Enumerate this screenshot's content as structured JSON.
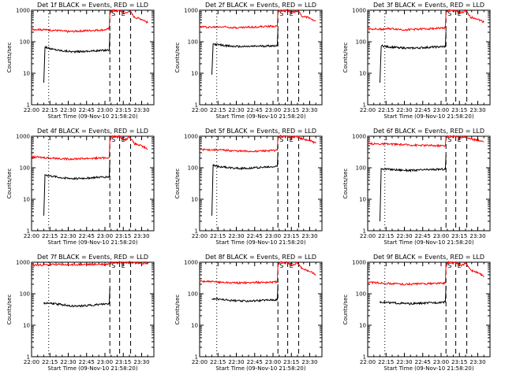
{
  "figure": {
    "xlabel": "Start Time (09-Nov-10 21:58:20)",
    "ylabel": "Counts/sec",
    "x_ticks": [
      "22:00",
      "22:15",
      "22:30",
      "22:45",
      "23:00",
      "23:15",
      "23:30"
    ],
    "y_ticks": [
      "1",
      "10",
      "100",
      "1000"
    ],
    "marker_labels": [
      "S",
      "E"
    ],
    "colors": {
      "events": "#000000",
      "lld": "#ff0000",
      "background": "#ffffff"
    }
  },
  "chart_data": [
    {
      "type": "line",
      "title": "Det 1f BLACK = Events, RED = LLD",
      "xlabel": "Start Time (09-Nov-10 21:58:20)",
      "ylabel": "Counts/sec",
      "x_unit": "minutes after 22:00",
      "xlim": [
        0,
        100
      ],
      "ylim": [
        1,
        1000
      ],
      "y_scale": "log",
      "vlines": [
        {
          "x": 14,
          "style": "dotted"
        },
        {
          "x": 64,
          "style": "dashed",
          "label": "S"
        },
        {
          "x": 72,
          "style": "dashed",
          "label": "E"
        },
        {
          "x": 81,
          "style": "dashed"
        }
      ],
      "series": [
        {
          "name": "Events",
          "color": "#000000",
          "x": [
            10,
            11,
            15,
            25,
            35,
            45,
            55,
            63.5,
            64
          ],
          "y": [
            5,
            70,
            60,
            52,
            48,
            50,
            52,
            55,
            190
          ]
        },
        {
          "name": "LLD",
          "color": "#ff0000",
          "x": [
            0,
            10,
            20,
            30,
            40,
            50,
            60,
            63.5,
            64,
            66,
            70,
            72,
            75,
            78,
            80,
            84,
            88,
            92,
            95
          ],
          "y": [
            250,
            240,
            230,
            210,
            220,
            230,
            240,
            260,
            800,
            1000,
            950,
            1000,
            800,
            820,
            1000,
            600,
            550,
            480,
            400
          ]
        }
      ]
    },
    {
      "type": "line",
      "title": "Det 2f BLACK = Events, RED = LLD",
      "xlabel": "Start Time (09-Nov-10 21:58:20)",
      "ylabel": "Counts/sec",
      "x_unit": "minutes after 22:00",
      "xlim": [
        0,
        100
      ],
      "ylim": [
        1,
        1000
      ],
      "y_scale": "log",
      "vlines": [
        {
          "x": 14,
          "style": "dotted"
        },
        {
          "x": 64,
          "style": "dashed",
          "label": "S"
        },
        {
          "x": 72,
          "style": "dashed",
          "label": "E"
        },
        {
          "x": 81,
          "style": "dashed"
        }
      ],
      "series": [
        {
          "name": "Events",
          "color": "#000000",
          "x": [
            10,
            11,
            15,
            25,
            35,
            45,
            55,
            63.5,
            64
          ],
          "y": [
            9,
            85,
            80,
            72,
            70,
            72,
            74,
            75,
            250
          ]
        },
        {
          "name": "LLD",
          "color": "#ff0000",
          "x": [
            0,
            10,
            20,
            30,
            40,
            50,
            60,
            63.5,
            64,
            66,
            70,
            72,
            75,
            78,
            80,
            84,
            88,
            92,
            95
          ],
          "y": [
            300,
            290,
            300,
            280,
            290,
            300,
            310,
            320,
            900,
            1000,
            950,
            1000,
            850,
            900,
            1000,
            650,
            600,
            520,
            450
          ]
        }
      ]
    },
    {
      "type": "line",
      "title": "Det 3f BLACK = Events, RED = LLD",
      "xlabel": "Start Time (09-Nov-10 21:58:20)",
      "ylabel": "Counts/sec",
      "x_unit": "minutes after 22:00",
      "xlim": [
        0,
        100
      ],
      "ylim": [
        1,
        1000
      ],
      "y_scale": "log",
      "vlines": [
        {
          "x": 14,
          "style": "dotted"
        },
        {
          "x": 64,
          "style": "dashed",
          "label": "S"
        },
        {
          "x": 72,
          "style": "dashed",
          "label": "E"
        },
        {
          "x": 81,
          "style": "dashed"
        }
      ],
      "series": [
        {
          "name": "Events",
          "color": "#000000",
          "x": [
            10,
            11,
            15,
            25,
            35,
            45,
            55,
            63.5,
            64
          ],
          "y": [
            5,
            75,
            70,
            65,
            62,
            65,
            68,
            70,
            220
          ]
        },
        {
          "name": "LLD",
          "color": "#ff0000",
          "x": [
            0,
            10,
            20,
            30,
            40,
            50,
            60,
            63.5,
            64,
            66,
            70,
            72,
            75,
            78,
            80,
            84,
            88,
            92,
            95
          ],
          "y": [
            260,
            250,
            260,
            240,
            250,
            260,
            270,
            280,
            850,
            1000,
            950,
            1000,
            820,
            860,
            1000,
            600,
            560,
            480,
            420
          ]
        }
      ]
    },
    {
      "type": "line",
      "title": "Det 4f BLACK = Events, RED = LLD",
      "xlabel": "Start Time (09-Nov-10 21:58:20)",
      "ylabel": "Counts/sec",
      "x_unit": "minutes after 22:00",
      "xlim": [
        0,
        100
      ],
      "ylim": [
        1,
        1000
      ],
      "y_scale": "log",
      "vlines": [
        {
          "x": 14,
          "style": "dotted"
        },
        {
          "x": 64,
          "style": "dashed",
          "label": "S"
        },
        {
          "x": 72,
          "style": "dashed",
          "label": "E"
        },
        {
          "x": 81,
          "style": "dashed"
        }
      ],
      "series": [
        {
          "name": "Events",
          "color": "#000000",
          "x": [
            10,
            11,
            15,
            25,
            35,
            45,
            55,
            63.5,
            64
          ],
          "y": [
            3,
            60,
            55,
            48,
            45,
            47,
            50,
            52,
            180
          ]
        },
        {
          "name": "LLD",
          "color": "#ff0000",
          "x": [
            0,
            10,
            20,
            30,
            40,
            50,
            60,
            63.5,
            64,
            66,
            70,
            72,
            75,
            78,
            80,
            84,
            88,
            92,
            95
          ],
          "y": [
            220,
            210,
            200,
            190,
            195,
            200,
            205,
            210,
            750,
            1000,
            950,
            1000,
            780,
            820,
            1000,
            580,
            520,
            450,
            380
          ]
        }
      ]
    },
    {
      "type": "line",
      "title": "Det 5f BLACK = Events, RED = LLD",
      "xlabel": "Start Time (09-Nov-10 21:58:20)",
      "ylabel": "Counts/sec",
      "x_unit": "minutes after 22:00",
      "xlim": [
        0,
        100
      ],
      "ylim": [
        1,
        1000
      ],
      "y_scale": "log",
      "vlines": [
        {
          "x": 14,
          "style": "dotted"
        },
        {
          "x": 64,
          "style": "dashed",
          "label": "S"
        },
        {
          "x": 72,
          "style": "dashed",
          "label": "E"
        },
        {
          "x": 81,
          "style": "dashed"
        }
      ],
      "series": [
        {
          "name": "Events",
          "color": "#000000",
          "x": [
            10,
            11,
            15,
            25,
            35,
            45,
            55,
            63.5,
            64
          ],
          "y": [
            3,
            120,
            110,
            100,
            95,
            100,
            105,
            110,
            300
          ]
        },
        {
          "name": "LLD",
          "color": "#ff0000",
          "x": [
            0,
            10,
            20,
            30,
            40,
            50,
            60,
            63.5,
            64,
            66,
            70,
            72,
            75,
            78,
            80,
            84,
            88,
            92,
            95
          ],
          "y": [
            380,
            370,
            360,
            340,
            330,
            340,
            350,
            360,
            950,
            1000,
            980,
            1000,
            900,
            950,
            1000,
            800,
            750,
            680,
            600
          ]
        }
      ]
    },
    {
      "type": "line",
      "title": "Det 6f BLACK = Events, RED = LLD",
      "xlabel": "Start Time (09-Nov-10 21:58:20)",
      "ylabel": "Counts/sec",
      "x_unit": "minutes after 22:00",
      "xlim": [
        0,
        100
      ],
      "ylim": [
        1,
        1000
      ],
      "y_scale": "log",
      "vlines": [
        {
          "x": 14,
          "style": "dotted"
        },
        {
          "x": 64,
          "style": "dashed",
          "label": "S"
        },
        {
          "x": 72,
          "style": "dashed",
          "label": "E"
        },
        {
          "x": 81,
          "style": "dashed"
        }
      ],
      "series": [
        {
          "name": "Events",
          "color": "#000000",
          "x": [
            10,
            11,
            15,
            25,
            35,
            45,
            55,
            63.5,
            64
          ],
          "y": [
            2,
            95,
            90,
            85,
            82,
            85,
            88,
            90,
            250
          ]
        },
        {
          "name": "LLD",
          "color": "#ff0000",
          "x": [
            0,
            10,
            20,
            30,
            40,
            50,
            60,
            63.5,
            64,
            66,
            70,
            72,
            75,
            78,
            80,
            84,
            88,
            92,
            95
          ],
          "y": [
            580,
            570,
            560,
            540,
            520,
            510,
            500,
            500,
            950,
            1000,
            980,
            1000,
            900,
            950,
            1000,
            800,
            780,
            720,
            680
          ]
        }
      ]
    },
    {
      "type": "line",
      "title": "Det 7f BLACK = Events, RED = LLD",
      "xlabel": "Start Time (09-Nov-10 21:58:20)",
      "ylabel": "Counts/sec",
      "x_unit": "minutes after 22:00",
      "xlim": [
        0,
        100
      ],
      "ylim": [
        1,
        1000
      ],
      "y_scale": "log",
      "vlines": [
        {
          "x": 14,
          "style": "dotted"
        },
        {
          "x": 64,
          "style": "dashed",
          "label": "S"
        },
        {
          "x": 72,
          "style": "dashed",
          "label": "E"
        },
        {
          "x": 81,
          "style": "dashed"
        }
      ],
      "series": [
        {
          "name": "Events",
          "color": "#000000",
          "x": [
            10,
            15,
            25,
            35,
            45,
            55,
            63.5,
            64
          ],
          "y": [
            50,
            50,
            45,
            40,
            42,
            45,
            48,
            150
          ]
        },
        {
          "name": "LLD",
          "color": "#ff0000",
          "x": [
            0,
            10,
            20,
            30,
            40,
            50,
            60,
            63.5,
            64,
            66,
            70,
            72,
            75,
            78,
            80,
            84,
            88,
            92,
            95
          ],
          "y": [
            800,
            820,
            850,
            830,
            840,
            850,
            860,
            880,
            1000,
            1000,
            980,
            1000,
            950,
            980,
            1000,
            950,
            930,
            920,
            900
          ]
        }
      ]
    },
    {
      "type": "line",
      "title": "Det 8f BLACK = Events, RED = LLD",
      "xlabel": "Start Time (09-Nov-10 21:58:20)",
      "ylabel": "Counts/sec",
      "x_unit": "minutes after 22:00",
      "xlim": [
        0,
        100
      ],
      "ylim": [
        1,
        1000
      ],
      "y_scale": "log",
      "vlines": [
        {
          "x": 14,
          "style": "dotted"
        },
        {
          "x": 64,
          "style": "dashed",
          "label": "S"
        },
        {
          "x": 72,
          "style": "dashed",
          "label": "E"
        },
        {
          "x": 81,
          "style": "dashed"
        }
      ],
      "series": [
        {
          "name": "Events",
          "color": "#000000",
          "x": [
            10,
            15,
            25,
            35,
            45,
            55,
            63.5,
            64
          ],
          "y": [
            70,
            68,
            62,
            58,
            60,
            63,
            65,
            200
          ]
        },
        {
          "name": "LLD",
          "color": "#ff0000",
          "x": [
            0,
            10,
            20,
            30,
            40,
            50,
            60,
            63.5,
            64,
            66,
            70,
            72,
            75,
            78,
            80,
            84,
            88,
            92,
            95
          ],
          "y": [
            250,
            240,
            230,
            220,
            225,
            230,
            235,
            240,
            800,
            1000,
            950,
            1000,
            800,
            850,
            1000,
            600,
            550,
            480,
            400
          ]
        }
      ]
    },
    {
      "type": "line",
      "title": "Det 9f BLACK = Events, RED = LLD",
      "xlabel": "Start Time (09-Nov-10 21:58:20)",
      "ylabel": "Counts/sec",
      "x_unit": "minutes after 22:00",
      "xlim": [
        0,
        100
      ],
      "ylim": [
        1,
        1000
      ],
      "y_scale": "log",
      "vlines": [
        {
          "x": 14,
          "style": "dotted"
        },
        {
          "x": 64,
          "style": "dashed",
          "label": "S"
        },
        {
          "x": 72,
          "style": "dashed",
          "label": "E"
        },
        {
          "x": 81,
          "style": "dashed"
        }
      ],
      "series": [
        {
          "name": "Events",
          "color": "#000000",
          "x": [
            10,
            15,
            25,
            35,
            45,
            55,
            63.5,
            64
          ],
          "y": [
            55,
            53,
            50,
            48,
            50,
            52,
            55,
            180
          ]
        },
        {
          "name": "LLD",
          "color": "#ff0000",
          "x": [
            0,
            10,
            20,
            30,
            40,
            50,
            60,
            63.5,
            64,
            66,
            70,
            72,
            75,
            78,
            80,
            84,
            88,
            92,
            95
          ],
          "y": [
            230,
            220,
            210,
            200,
            205,
            210,
            215,
            220,
            750,
            1000,
            950,
            1000,
            780,
            820,
            1000,
            560,
            500,
            420,
            340
          ]
        }
      ]
    }
  ]
}
